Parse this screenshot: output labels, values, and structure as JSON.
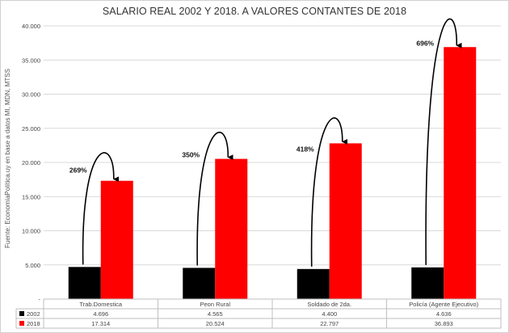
{
  "chart_data": {
    "type": "bar",
    "title": "SALARIO REAL 2002 Y 2018. A VALORES CONTANTES DE 2018",
    "ylabel": "Fuente: EconomíaPolítica.uy en base a datos MI, MDN, MTSS",
    "xlabel": "",
    "ylim": [
      0,
      40000
    ],
    "yticks": [
      "-",
      "5.000",
      "10.000",
      "15.000",
      "20.000",
      "25.000",
      "30.000",
      "35.000",
      "40.000"
    ],
    "grid": true,
    "legend_position": "data table below plot",
    "categories": [
      "Trab.Domestica",
      "Peon Rural",
      "Soldado de 2da.",
      "Policía (Agente Ejecutivo)"
    ],
    "series": [
      {
        "name": "2002",
        "color": "#000000",
        "values": [
          4696,
          4565,
          4400,
          4636
        ],
        "labels": [
          "4.696",
          "4.565",
          "4.400",
          "4.636"
        ]
      },
      {
        "name": "2018",
        "color": "#ff0000",
        "values": [
          17314,
          20524,
          22797,
          36893
        ],
        "labels": [
          "17.314",
          "20.524",
          "22.797",
          "36.893"
        ]
      }
    ],
    "annotations": [
      "269%",
      "350%",
      "418%",
      "696%"
    ]
  }
}
